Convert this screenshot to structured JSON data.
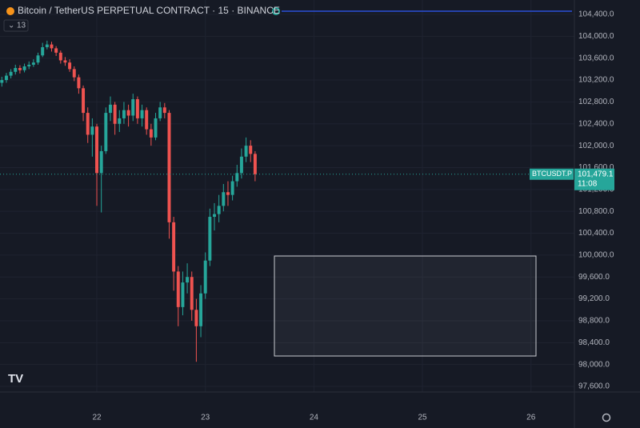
{
  "chart_data": {
    "type": "candlestick",
    "title": "Bitcoin / TetherUS PERPETUAL CONTRACT · 15 · BINANCE",
    "indicator_badge": "13",
    "x": [
      21.125,
      21.1667,
      21.2083,
      21.25,
      21.2917,
      21.3333,
      21.375,
      21.4167,
      21.4583,
      21.5,
      21.5417,
      21.5833,
      21.625,
      21.6667,
      21.7083,
      21.75,
      21.7917,
      21.8333,
      21.875,
      21.9167,
      21.9583,
      22,
      22.0417,
      22.0833,
      22.125,
      22.1667,
      22.2083,
      22.25,
      22.2917,
      22.3333,
      22.375,
      22.4167,
      22.4583,
      22.5,
      22.5417,
      22.5833,
      22.625,
      22.6667,
      22.7083,
      22.75,
      22.7917,
      22.8333,
      22.875,
      22.9167,
      22.9583,
      23,
      23.0417,
      23.0833,
      23.125,
      23.1667,
      23.2083,
      23.25,
      23.2917,
      23.3333,
      23.375,
      23.4167,
      23.4583
    ],
    "open": [
      103150,
      103200,
      103280,
      103350,
      103420,
      103380,
      103450,
      103480,
      103520,
      103650,
      103800,
      103850,
      103780,
      103700,
      103560,
      103520,
      103400,
      103250,
      103050,
      102600,
      102200,
      102350,
      101500,
      101900,
      102600,
      102750,
      102400,
      102500,
      102650,
      102550,
      102850,
      102500,
      102650,
      102300,
      102150,
      102500,
      102700,
      102600,
      100600,
      99700,
      99050,
      99500,
      99600,
      99000,
      98700,
      99300,
      99900,
      100700,
      100750,
      100900,
      101150,
      101100,
      101350,
      101500,
      101800,
      102000,
      101850
    ],
    "high": [
      103260,
      103330,
      103400,
      103480,
      103470,
      103500,
      103540,
      103580,
      103700,
      103880,
      103920,
      103900,
      103820,
      103740,
      103620,
      103580,
      103450,
      103300,
      103100,
      102700,
      102500,
      102400,
      102000,
      102700,
      102900,
      102800,
      102650,
      102800,
      102750,
      102950,
      102900,
      102750,
      102700,
      102400,
      102600,
      102800,
      102780,
      102650,
      100700,
      99800,
      99700,
      99850,
      99700,
      99200,
      99450,
      100050,
      100850,
      100950,
      101100,
      101300,
      101350,
      101450,
      101650,
      101950,
      102150,
      102100,
      101900
    ],
    "low": [
      103080,
      103150,
      103230,
      103300,
      103320,
      103340,
      103400,
      103440,
      103480,
      103620,
      103760,
      103720,
      103640,
      103500,
      103460,
      103350,
      103180,
      102950,
      102450,
      102050,
      101800,
      100900,
      100780,
      101850,
      102450,
      102200,
      102250,
      102400,
      102350,
      102450,
      102400,
      102350,
      102200,
      102000,
      102100,
      102450,
      102500,
      100300,
      99350,
      98700,
      98900,
      99300,
      98800,
      98050,
      98500,
      99200,
      99800,
      100450,
      100600,
      100800,
      100900,
      101000,
      101250,
      101400,
      101700,
      101700,
      101350
    ],
    "close": [
      103200,
      103280,
      103350,
      103420,
      103380,
      103450,
      103480,
      103520,
      103650,
      103800,
      103850,
      103780,
      103700,
      103560,
      103520,
      103400,
      103250,
      103050,
      102600,
      102200,
      102350,
      101500,
      101900,
      102600,
      102750,
      102400,
      102500,
      102650,
      102550,
      102850,
      102500,
      102650,
      102300,
      102150,
      102500,
      102700,
      102600,
      100600,
      99700,
      99050,
      99500,
      99600,
      99000,
      98700,
      99300,
      99900,
      100700,
      100750,
      100900,
      101150,
      101100,
      101350,
      101500,
      101800,
      102000,
      101850,
      101479.1
    ],
    "up_color": "#26a69a",
    "down_color": "#ef5350",
    "xlim": [
      21.108,
      26.4
    ],
    "xticks": [
      22,
      23,
      24,
      25,
      26
    ],
    "ylim": [
      97498,
      104663
    ],
    "yticks": [
      {
        "value": 97600,
        "label": "97,600.0"
      },
      {
        "value": 98000,
        "label": "98,000.0"
      },
      {
        "value": 98400,
        "label": "98,400.0"
      },
      {
        "value": 98800,
        "label": "98,800.0"
      },
      {
        "value": 99200,
        "label": "99,200.0"
      },
      {
        "value": 99600,
        "label": "99,600.0"
      },
      {
        "value": 100000,
        "label": "100,000.0"
      },
      {
        "value": 100400,
        "label": "100,400.0"
      },
      {
        "value": 100800,
        "label": "100,800.0"
      },
      {
        "value": 101200,
        "label": "101,200.0"
      },
      {
        "value": 101600,
        "label": "101,600.0"
      },
      {
        "value": 102000,
        "label": "102,000.0"
      },
      {
        "value": 102400,
        "label": "102,400.0"
      },
      {
        "value": 102800,
        "label": "102,800.0"
      },
      {
        "value": 103200,
        "label": "103,200.0"
      },
      {
        "value": 103600,
        "label": "103,600.0"
      },
      {
        "value": 104000,
        "label": "104,000.0"
      },
      {
        "value": 104400,
        "label": "104,400.0"
      }
    ],
    "grid": true,
    "last_price": {
      "value": 101479.1,
      "label": "101,479.1"
    },
    "symbol_tag": "BTCUSDT.P",
    "countdown": "11:08"
  }
}
